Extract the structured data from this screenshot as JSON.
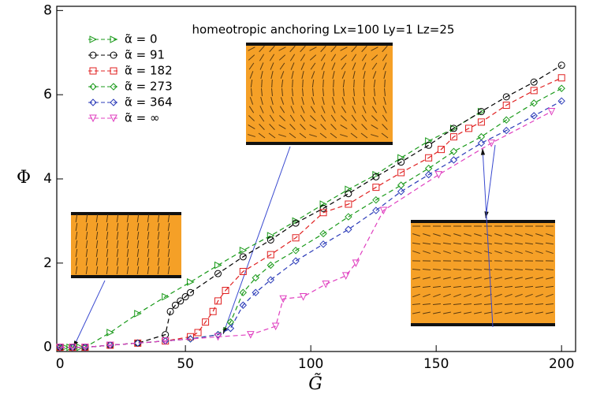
{
  "chart_data": {
    "type": "line",
    "title": "homeotropic anchoring Lx=100 Ly=1 Lz=25",
    "x_label": "G̃",
    "y_label": "Φ",
    "xlim": [
      -1.3,
      205.6
    ],
    "ylim": [
      -0.1,
      8.1
    ],
    "xticks": [
      0,
      50,
      100,
      150,
      200
    ],
    "yticks": [
      0,
      2,
      4,
      6,
      8
    ],
    "series": [
      {
        "name": "α̃ = 0",
        "color": "#1a9a1a",
        "marker": "triangle-right",
        "x": [
          0,
          2,
          4,
          6,
          8,
          10,
          20,
          31,
          42,
          52,
          63,
          73,
          84,
          94,
          105,
          115,
          126,
          136,
          147,
          157,
          168
        ],
        "values": [
          0,
          0,
          0,
          0,
          0,
          0,
          0.35,
          0.8,
          1.2,
          1.55,
          1.95,
          2.3,
          2.65,
          3.0,
          3.4,
          3.75,
          4.1,
          4.5,
          4.9,
          5.2,
          5.6
        ]
      },
      {
        "name": "α̃ = 91",
        "color": "#000000",
        "marker": "circle",
        "x": [
          0,
          5,
          10,
          20,
          31,
          42,
          44,
          46,
          48,
          50,
          52,
          63,
          73,
          84,
          94,
          105,
          115,
          126,
          136,
          147,
          157,
          168,
          178,
          189,
          200
        ],
        "values": [
          0,
          0,
          0,
          0.05,
          0.1,
          0.3,
          0.85,
          1.0,
          1.1,
          1.2,
          1.3,
          1.75,
          2.15,
          2.55,
          2.95,
          3.3,
          3.65,
          4.05,
          4.4,
          4.8,
          5.2,
          5.6,
          5.95,
          6.3,
          6.7
        ]
      },
      {
        "name": "α̃ = 182",
        "color": "#e02020",
        "marker": "square",
        "x": [
          0,
          5,
          10,
          20,
          31,
          42,
          52,
          55,
          58,
          61,
          63,
          66,
          73,
          84,
          94,
          105,
          115,
          126,
          136,
          147,
          152,
          157,
          163,
          168,
          178,
          189,
          200
        ],
        "values": [
          0,
          0,
          0,
          0.05,
          0.1,
          0.15,
          0.25,
          0.35,
          0.6,
          0.85,
          1.1,
          1.35,
          1.8,
          2.2,
          2.6,
          3.2,
          3.4,
          3.8,
          4.15,
          4.5,
          4.7,
          5.0,
          5.2,
          5.35,
          5.75,
          6.1,
          6.4
        ]
      },
      {
        "name": "α̃ = 273",
        "color": "#1a9a1a",
        "marker": "diamond",
        "x": [
          0,
          5,
          10,
          20,
          31,
          42,
          52,
          63,
          68,
          73,
          78,
          84,
          94,
          105,
          115,
          126,
          136,
          147,
          157,
          168,
          178,
          189,
          200
        ],
        "values": [
          0,
          0,
          0,
          0.05,
          0.1,
          0.15,
          0.2,
          0.3,
          0.6,
          1.3,
          1.65,
          1.95,
          2.3,
          2.7,
          3.1,
          3.5,
          3.85,
          4.25,
          4.65,
          5.0,
          5.4,
          5.8,
          6.15
        ]
      },
      {
        "name": "α̃ = 364",
        "color": "#2a3ab8",
        "marker": "diamond",
        "x": [
          0,
          5,
          10,
          20,
          31,
          42,
          52,
          63,
          68,
          73,
          78,
          84,
          94,
          105,
          115,
          126,
          136,
          147,
          157,
          168,
          178,
          189,
          200
        ],
        "values": [
          0,
          0,
          0,
          0.05,
          0.1,
          0.15,
          0.2,
          0.3,
          0.45,
          1.0,
          1.3,
          1.6,
          2.05,
          2.45,
          2.8,
          3.25,
          3.7,
          4.1,
          4.45,
          4.85,
          5.15,
          5.5,
          5.85
        ]
      },
      {
        "name": "α̃ = ∞",
        "color": "#e040c0",
        "marker": "triangle-down",
        "x": [
          0,
          5,
          10,
          20,
          42,
          63,
          76,
          86,
          89,
          97,
          106,
          114,
          118,
          129,
          151,
          172,
          196
        ],
        "values": [
          0,
          0,
          0,
          0.05,
          0.15,
          0.25,
          0.3,
          0.5,
          1.15,
          1.2,
          1.5,
          1.7,
          2.0,
          3.25,
          4.1,
          4.85,
          5.6
        ]
      }
    ]
  }
}
